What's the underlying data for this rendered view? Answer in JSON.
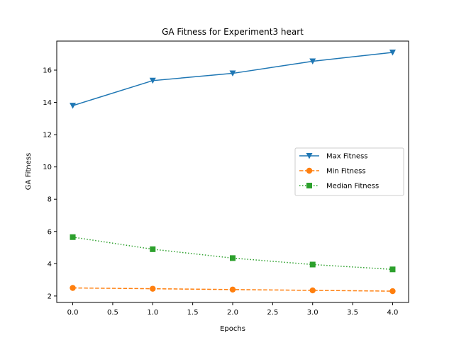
{
  "chart_data": {
    "type": "line",
    "title": "GA Fitness for Experiment3 heart",
    "xlabel": "Epochs",
    "ylabel": "GA Fitness",
    "x": [
      0,
      1,
      2,
      3,
      4
    ],
    "xlim": [
      -0.2,
      4.2
    ],
    "ylim": [
      1.6,
      17.8
    ],
    "xticks": [
      0.0,
      0.5,
      1.0,
      1.5,
      2.0,
      2.5,
      3.0,
      3.5,
      4.0
    ],
    "xtick_labels": [
      "0.0",
      "0.5",
      "1.0",
      "1.5",
      "2.0",
      "2.5",
      "3.0",
      "3.5",
      "4.0"
    ],
    "yticks": [
      2,
      4,
      6,
      8,
      10,
      12,
      14,
      16
    ],
    "ytick_labels": [
      "2",
      "4",
      "6",
      "8",
      "10",
      "12",
      "14",
      "16"
    ],
    "grid": false,
    "legend_position": "center-right",
    "series": [
      {
        "name": "Max Fitness",
        "values": [
          13.8,
          15.35,
          15.8,
          16.55,
          17.1
        ],
        "color": "#1f77b4",
        "line_style": "solid",
        "marker": "triangle-down"
      },
      {
        "name": "Min Fitness",
        "values": [
          2.5,
          2.45,
          2.4,
          2.35,
          2.3
        ],
        "color": "#ff7f0e",
        "line_style": "dashed",
        "marker": "circle"
      },
      {
        "name": "Median Fitness",
        "values": [
          5.65,
          4.9,
          4.35,
          3.95,
          3.65
        ],
        "color": "#2ca02c",
        "line_style": "dotted",
        "marker": "square"
      }
    ]
  }
}
